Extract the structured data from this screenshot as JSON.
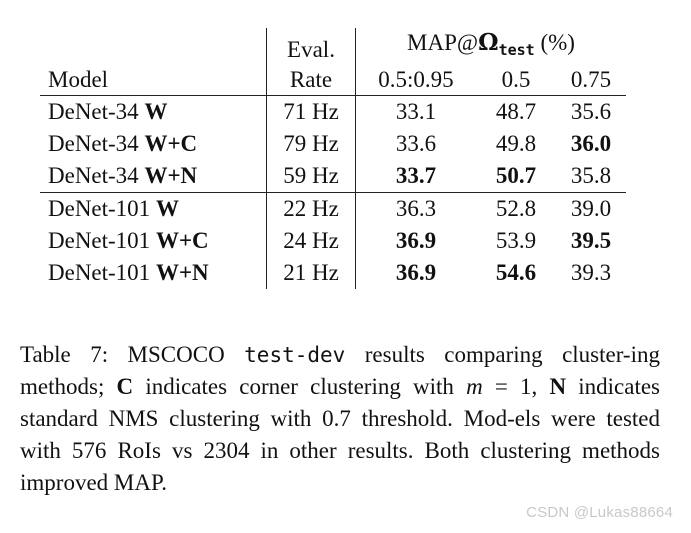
{
  "table": {
    "header": {
      "model_label": "Model",
      "eval_label": "Eval.",
      "rate_label": "Rate",
      "map_prefix": "MAP@",
      "omega_symbol": "Ω",
      "omega_subscript": "test",
      "map_suffix": " (%)",
      "iou_cols": [
        "0.5:0.95",
        "0.5",
        "0.75"
      ]
    },
    "rows": [
      {
        "model_prefix": "DeNet-34 ",
        "model_method": "W",
        "rate": "71 Hz",
        "map_all": "33.1",
        "map_50": "48.7",
        "map_75": "35.6",
        "bold": [
          false,
          false,
          false
        ]
      },
      {
        "model_prefix": "DeNet-34 ",
        "model_method": "W+C",
        "rate": "79 Hz",
        "map_all": "33.6",
        "map_50": "49.8",
        "map_75": "36.0",
        "bold": [
          false,
          false,
          true
        ]
      },
      {
        "model_prefix": "DeNet-34 ",
        "model_method": "W+N",
        "rate": "59 Hz",
        "map_all": "33.7",
        "map_50": "50.7",
        "map_75": "35.8",
        "bold": [
          true,
          true,
          false
        ]
      },
      {
        "model_prefix": "DeNet-101 ",
        "model_method": "W",
        "rate": "22 Hz",
        "map_all": "36.3",
        "map_50": "52.8",
        "map_75": "39.0",
        "bold": [
          false,
          false,
          false
        ]
      },
      {
        "model_prefix": "DeNet-101 ",
        "model_method": "W+C",
        "rate": "24 Hz",
        "map_all": "36.9",
        "map_50": "53.9",
        "map_75": "39.5",
        "bold": [
          true,
          false,
          true
        ]
      },
      {
        "model_prefix": "DeNet-101 ",
        "model_method": "W+N",
        "rate": "21 Hz",
        "map_all": "36.9",
        "map_50": "54.6",
        "map_75": "39.3",
        "bold": [
          true,
          true,
          false
        ]
      }
    ]
  },
  "caption": {
    "part1": "Table 7: MSCOCO ",
    "mono_text": "test-dev",
    "part2": " results comparing cluster-ing methods; ",
    "c_letter": "C",
    "part3": " indicates corner clustering with ",
    "math_var": "m",
    "math_eq": " = 1, ",
    "n_letter": "N",
    "part4": " indicates standard NMS clustering with 0.7 threshold. Mod-els were tested with 576 RoIs vs 2304 in other results. Both clustering methods improved MAP."
  },
  "watermark": "CSDN @Lukas88664"
}
